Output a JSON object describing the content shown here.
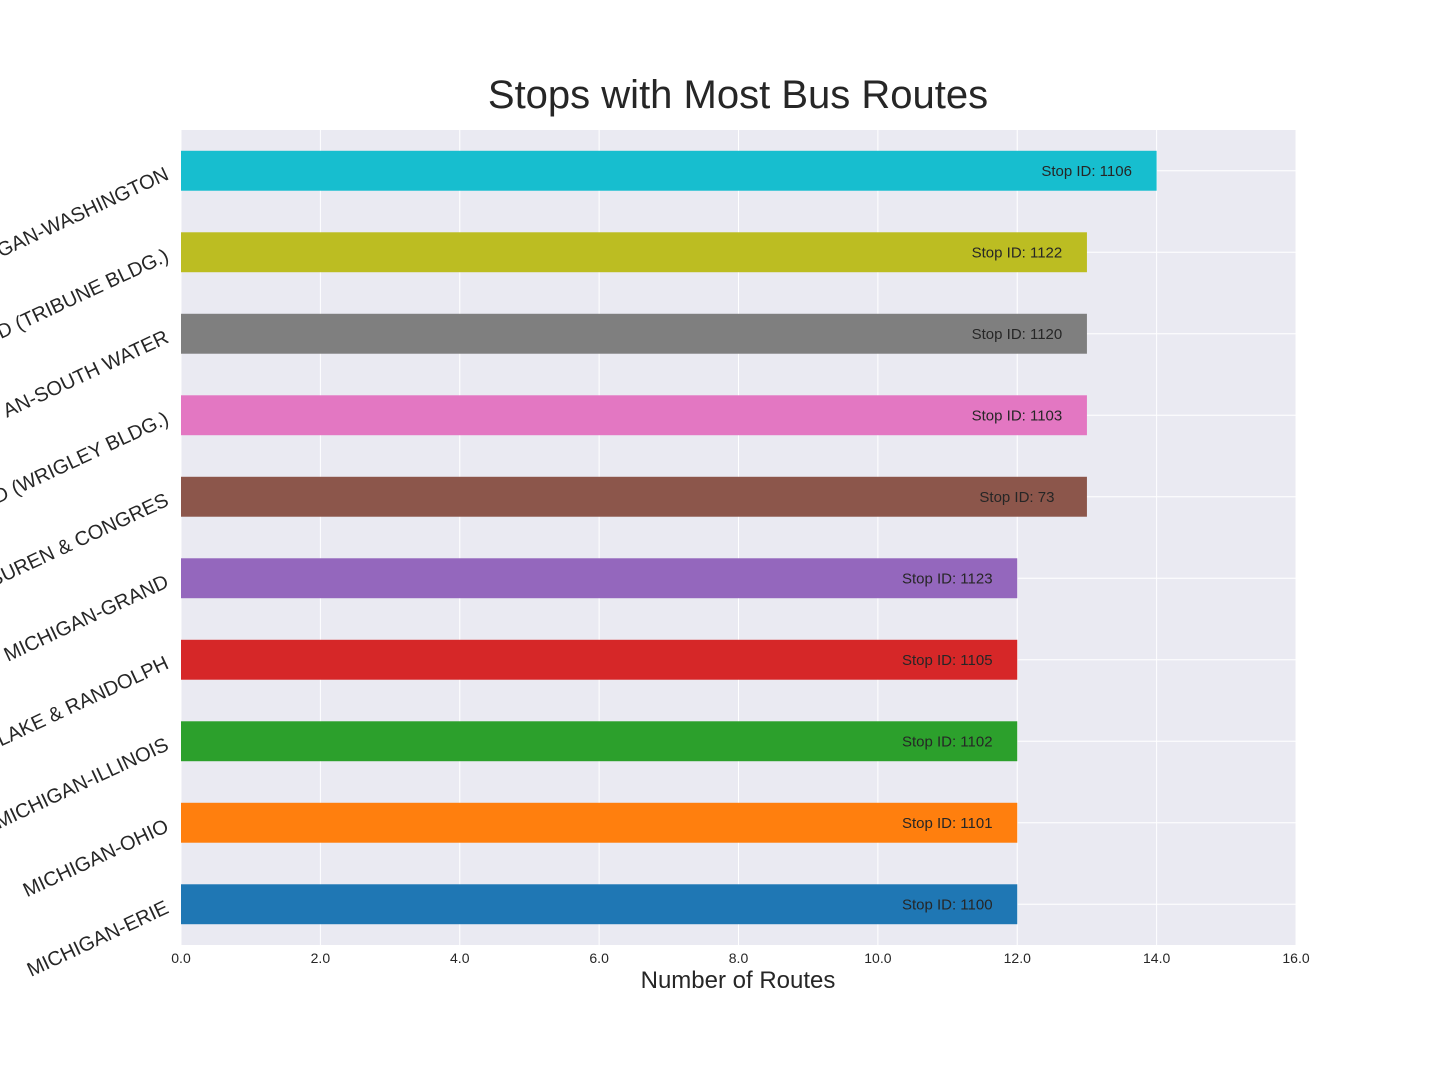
{
  "chart_data": {
    "type": "bar",
    "orientation": "horizontal",
    "title": "Stops with Most Bus Routes",
    "xlabel": "Number of Routes",
    "ylabel": "",
    "xlim": [
      0,
      16
    ],
    "x_ticks": [
      "0.0",
      "2.0",
      "4.0",
      "6.0",
      "8.0",
      "10.0",
      "12.0",
      "14.0",
      "16.0"
    ],
    "grid": true,
    "legend": "none",
    "background": "#EAEAF2",
    "categories": [
      "MICHIGAN-ERIE",
      "MICHIGAN-OHIO",
      "MICHIGAN-ILLINOIS",
      "LAKE & RANDOLPH",
      "MICHIGAN-GRAND",
      "BUREN & CONGRES",
      "D (WRIGLEY BLDG.)",
      "AN-SOUTH WATER",
      "D (TRIBUNE BLDG.)",
      "GAN-WASHINGTON"
    ],
    "values": [
      12,
      12,
      12,
      12,
      12,
      13,
      13,
      13,
      13,
      14
    ],
    "bar_labels": [
      "Stop ID: 1100",
      "Stop ID: 1101",
      "Stop ID: 1102",
      "Stop ID: 1105",
      "Stop ID: 1123",
      "Stop ID: 73",
      "Stop ID: 1103",
      "Stop ID: 1120",
      "Stop ID: 1122",
      "Stop ID: 1106"
    ],
    "colors": [
      "#1f77b4",
      "#ff7f0e",
      "#2ca02c",
      "#d62728",
      "#9467bd",
      "#8c564b",
      "#e377c2",
      "#7f7f7f",
      "#bcbd22",
      "#17becf"
    ]
  }
}
